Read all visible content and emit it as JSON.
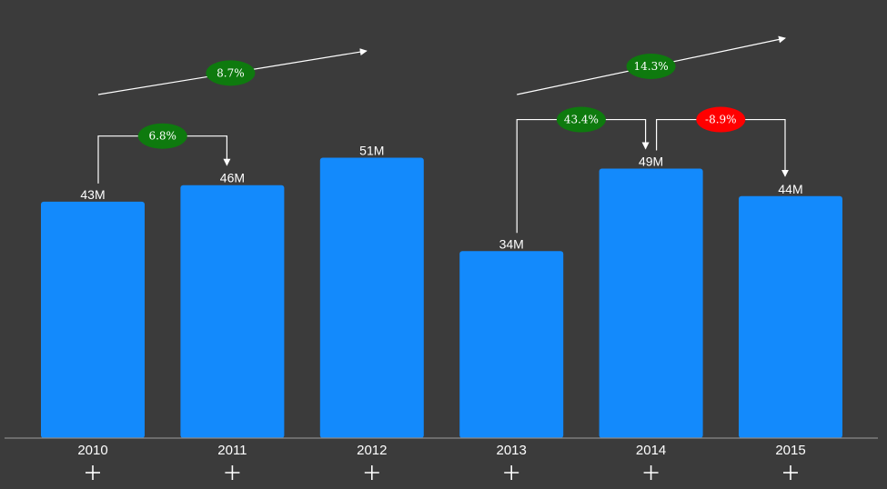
{
  "chart_data": {
    "type": "bar",
    "categories": [
      "2010",
      "2011",
      "2012",
      "2013",
      "2014",
      "2015"
    ],
    "values": [
      43,
      46,
      51,
      34,
      49,
      44
    ],
    "value_labels": [
      "43M",
      "46M",
      "51M",
      "34M",
      "49M",
      "44M"
    ],
    "title": "",
    "xlabel": "",
    "ylabel": "",
    "ylim": [
      0,
      60
    ],
    "grid": false,
    "bar_color": "#138afc",
    "background_color": "#3b3b3b",
    "expand_control": "+",
    "annotations": {
      "step_changes": [
        {
          "from": "2010",
          "to": "2011",
          "label": "6.8%",
          "color": "#0e7a0e"
        },
        {
          "from": "2013",
          "to": "2014",
          "label": "43.4%",
          "color": "#0e7a0e"
        },
        {
          "from": "2014",
          "to": "2015",
          "label": "-8.9%",
          "color": "#ff0000"
        }
      ],
      "trend_arrows": [
        {
          "from": "2010",
          "to": "2012",
          "label": "8.7%",
          "color": "#0e7a0e"
        },
        {
          "from": "2013",
          "to": "2015",
          "label": "14.3%",
          "color": "#0e7a0e"
        }
      ]
    }
  }
}
